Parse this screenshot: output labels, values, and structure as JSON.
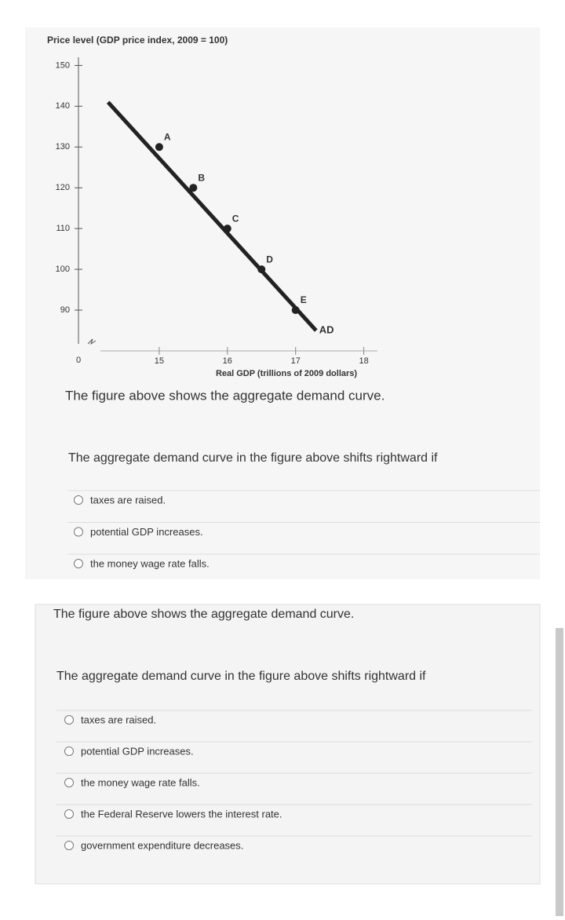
{
  "figure": {
    "y_label": "Price level (GDP price index, 2009 = 100)",
    "x_label": "Real GDP (trillions of 2009 dollars)",
    "origin_label": "0",
    "xlim": [
      14,
      18.2
    ],
    "ylim": [
      80,
      152
    ],
    "xticks": [
      15,
      16,
      17,
      18
    ],
    "yticks": [
      90,
      100,
      110,
      120,
      130,
      140,
      150
    ],
    "curve": {
      "label": "AD",
      "color": "#222222",
      "x": [
        14.25,
        17.3
      ],
      "y": [
        141,
        85
      ]
    },
    "points": {
      "labels": [
        "A",
        "B",
        "C",
        "D",
        "E"
      ],
      "x": [
        15,
        15.5,
        16,
        16.5,
        17
      ],
      "y": [
        130,
        120,
        110,
        100,
        90
      ]
    }
  },
  "panel1": {
    "caption": "The figure above shows the aggregate demand curve.",
    "question": "The aggregate demand curve in the figure above shifts rightward if",
    "options": [
      "taxes are raised.",
      "potential GDP increases.",
      "the money wage rate falls."
    ]
  },
  "panel2": {
    "caption": "The figure above shows the aggregate demand curve.",
    "question": "The aggregate demand curve in the figure above shifts rightward if",
    "options": [
      "taxes are raised.",
      "potential GDP increases.",
      "the money wage rate falls.",
      "the Federal Reserve lowers the interest rate.",
      "government expenditure decreases."
    ]
  }
}
